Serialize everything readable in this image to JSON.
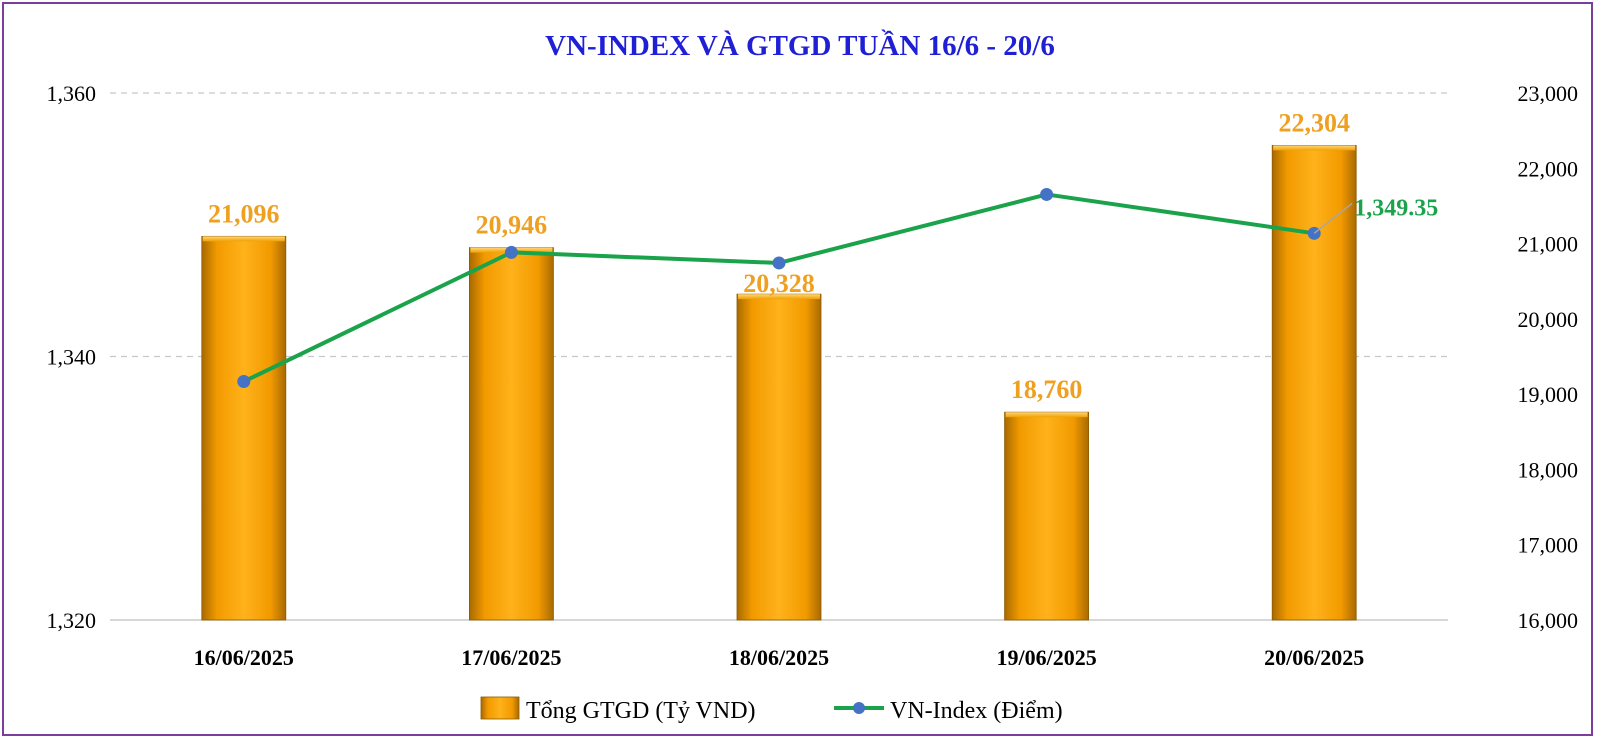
{
  "chart_data": {
    "type": "bar+line",
    "title": "VN-INDEX VÀ GTGD TUẦN 16/6 - 20/6",
    "categories": [
      "16/06/2025",
      "17/06/2025",
      "18/06/2025",
      "19/06/2025",
      "20/06/2025"
    ],
    "series": [
      {
        "name": "Tổng GTGD (Tỷ VND)",
        "type": "bar",
        "axis": "right",
        "values": [
          21096,
          20946,
          20328,
          18760,
          22304
        ],
        "labels": [
          "21,096",
          "20,946",
          "20,328",
          "18,760",
          "22,304"
        ],
        "color": "#f5a400"
      },
      {
        "name": "VN-Index (Điểm)",
        "type": "line",
        "axis": "left",
        "values": [
          1338.1,
          1347.9,
          1347.1,
          1352.3,
          1349.35
        ],
        "end_label": "1,349.35",
        "line_color": "#1aa34a",
        "marker_color": "#4472c4"
      }
    ],
    "left_axis": {
      "min": 1320,
      "max": 1360,
      "ticks": [
        "1,360",
        "1,340",
        "1,320"
      ],
      "tick_values": [
        1360,
        1340,
        1320
      ]
    },
    "right_axis": {
      "min": 16000,
      "max": 23000,
      "ticks": [
        "23,000",
        "22,000",
        "21,000",
        "20,000",
        "19,000",
        "18,000",
        "17,000",
        "16,000"
      ],
      "tick_values": [
        23000,
        22000,
        21000,
        20000,
        19000,
        18000,
        17000,
        16000
      ]
    },
    "gridlines": "dashed horizontal at left-axis ticks",
    "legend_position": "bottom"
  }
}
